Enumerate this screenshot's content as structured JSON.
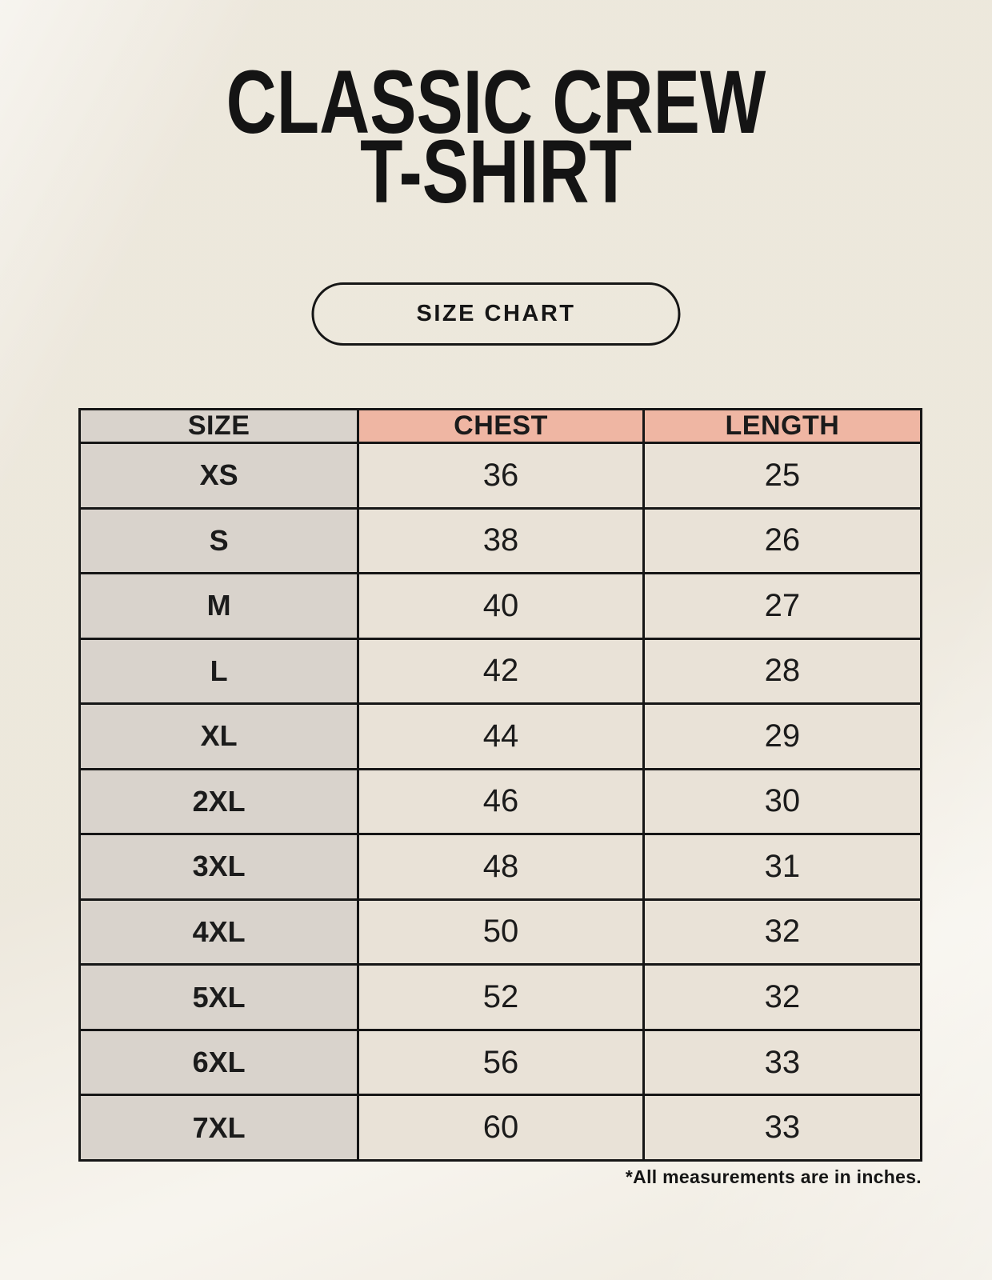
{
  "header": {
    "title_line1": "CLASSIC CREW",
    "title_line2": "T-SHIRT",
    "badge_label": "SIZE CHART"
  },
  "footer": {
    "note": "*All measurements are in inches."
  },
  "colors": {
    "page_background": "#f4f0e7",
    "size_column_bg": "#d9d3cc",
    "header_accent_bg": "#efb6a3",
    "data_cell_bg": "#e9e2d7",
    "border_and_text": "#161616"
  },
  "chart_data": {
    "type": "table",
    "columns": [
      "SIZE",
      "CHEST",
      "LENGTH"
    ],
    "rows": [
      [
        "XS",
        "36",
        "25"
      ],
      [
        "S",
        "38",
        "26"
      ],
      [
        "M",
        "40",
        "27"
      ],
      [
        "L",
        "42",
        "28"
      ],
      [
        "XL",
        "44",
        "29"
      ],
      [
        "2XL",
        "46",
        "30"
      ],
      [
        "3XL",
        "48",
        "31"
      ],
      [
        "4XL",
        "50",
        "32"
      ],
      [
        "5XL",
        "52",
        "32"
      ],
      [
        "6XL",
        "56",
        "33"
      ],
      [
        "7XL",
        "60",
        "33"
      ]
    ],
    "units_note": "*All measurements are in inches."
  }
}
